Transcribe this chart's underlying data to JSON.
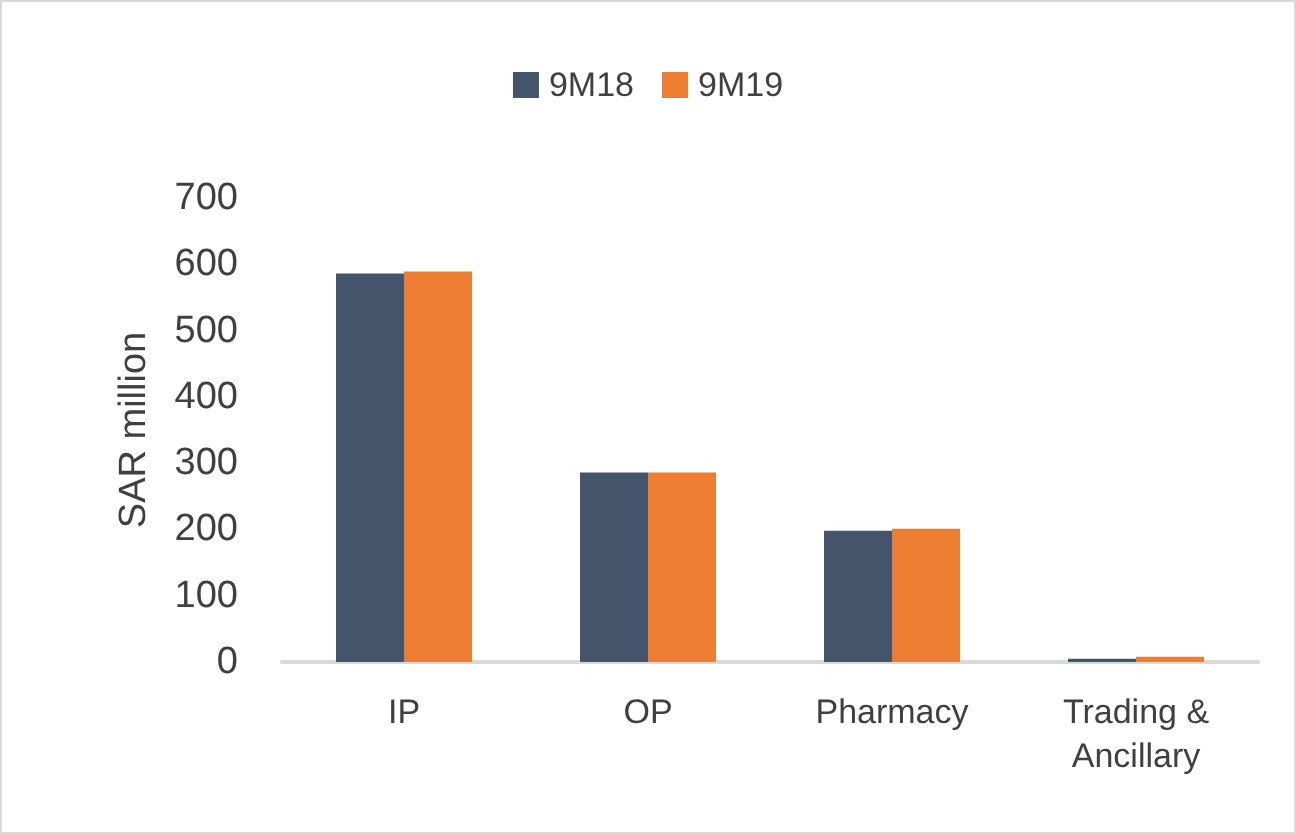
{
  "chart_data": {
    "type": "bar",
    "ylabel": "SAR million",
    "categories": [
      "IP",
      "OP",
      "Pharmacy",
      "Trading &\nAncillary"
    ],
    "series": [
      {
        "name": "9M18",
        "color": "#44546a",
        "values": [
          586,
          286,
          198,
          5
        ]
      },
      {
        "name": "9M19",
        "color": "#ed7d31",
        "values": [
          589,
          286,
          201,
          8
        ]
      }
    ],
    "ylim": [
      0,
      700
    ],
    "yticks": [
      0,
      100,
      200,
      300,
      400,
      500,
      600,
      700
    ],
    "grid": false,
    "legend": "top"
  }
}
